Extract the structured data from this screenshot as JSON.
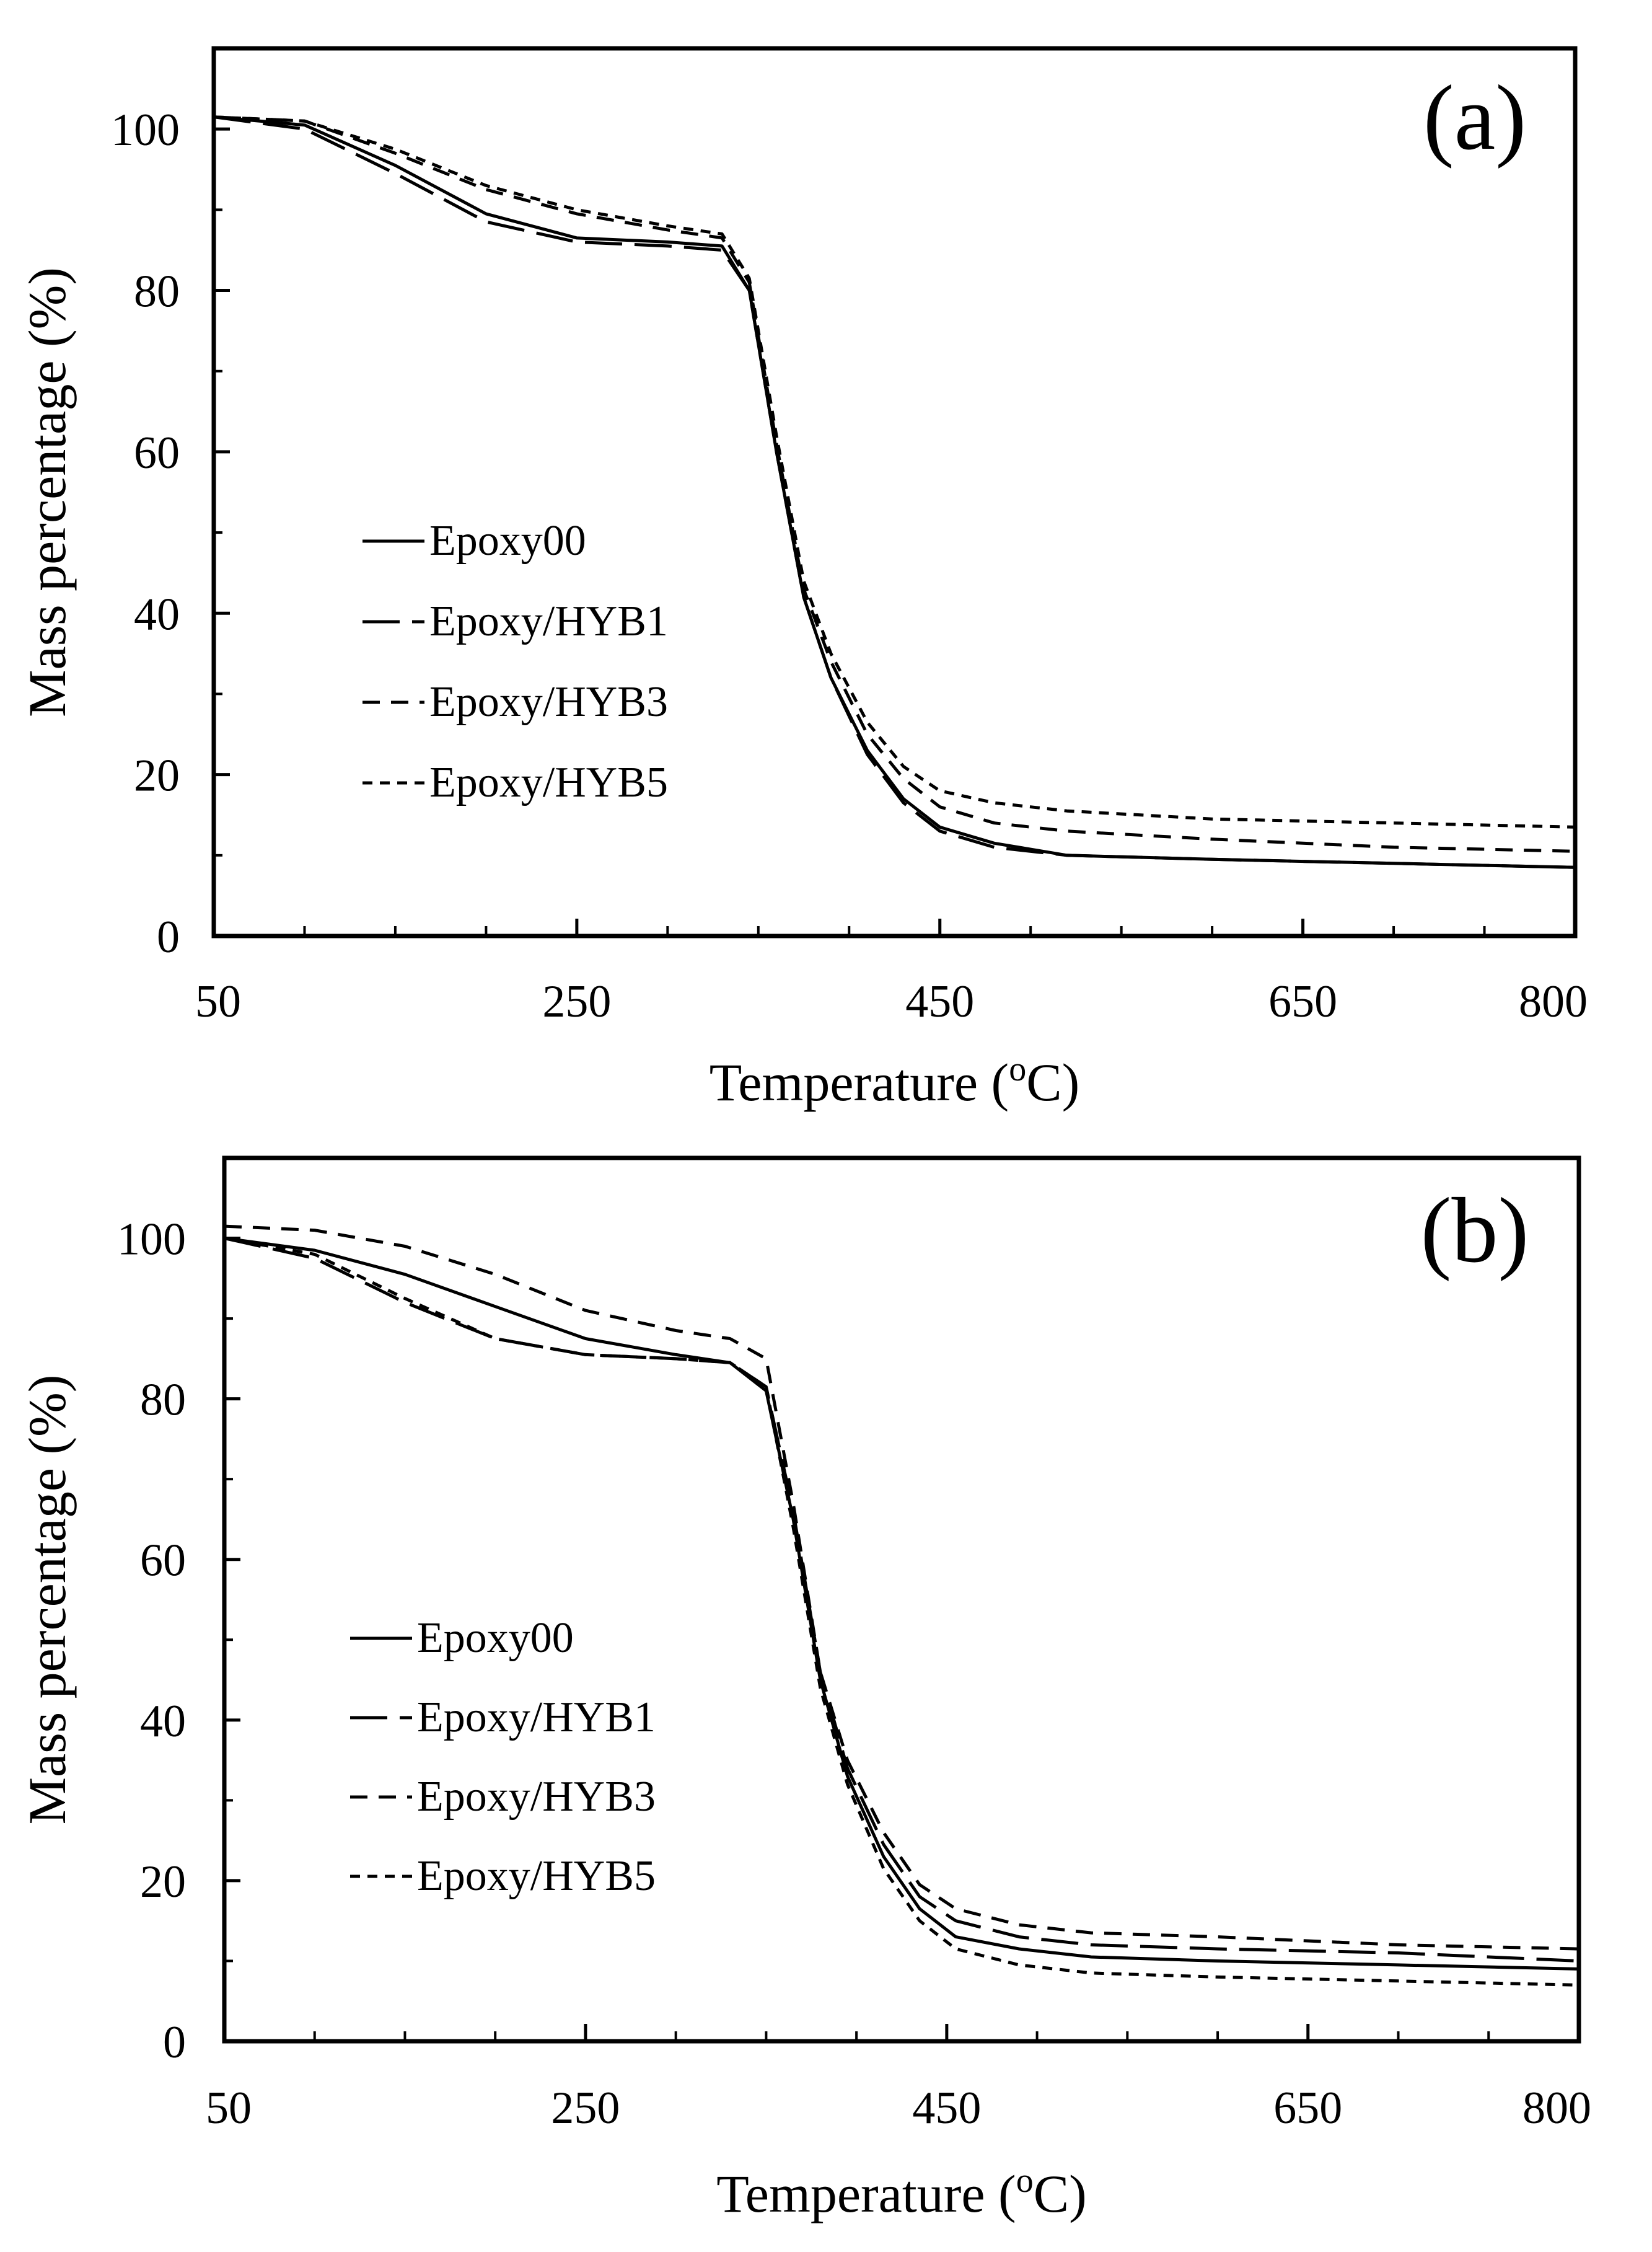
{
  "figure": {
    "description_none": null
  },
  "chart_data": [
    {
      "type": "line",
      "panel_label": "(a)",
      "title": "",
      "xlabel": "Temperature (",
      "xlabel_sup": "o",
      "xlabel_unit": "C)",
      "ylabel": "Mass percentage  (%)",
      "xlim": [
        50,
        800
      ],
      "ylim": [
        0,
        110
      ],
      "xticks": [
        50,
        250,
        450,
        650,
        800
      ],
      "xtick_labels": [
        "50",
        "250",
        "450",
        "650",
        "800"
      ],
      "yticks": [
        0,
        20,
        40,
        60,
        80,
        100
      ],
      "ytick_labels": [
        "0",
        "20",
        "40",
        "60",
        "80",
        "100"
      ],
      "grid": false,
      "legend_position": "center-left",
      "series": [
        {
          "name": "Epoxy00",
          "style": "solid",
          "x": [
            50,
            100,
            150,
            200,
            250,
            300,
            330,
            345,
            360,
            375,
            390,
            410,
            430,
            450,
            480,
            520,
            600,
            700,
            800
          ],
          "y": [
            101.5,
            100.5,
            95.5,
            89.5,
            86.5,
            86,
            85.5,
            80,
            60,
            42,
            32,
            23,
            17,
            13.5,
            11.5,
            10,
            9.5,
            9,
            8.5
          ]
        },
        {
          "name": "Epoxy/HYB1",
          "style": "long-dash",
          "x": [
            50,
            100,
            150,
            200,
            250,
            300,
            330,
            345,
            360,
            375,
            390,
            410,
            430,
            450,
            480,
            520,
            600,
            700,
            800
          ],
          "y": [
            101.5,
            100,
            94.5,
            88.5,
            86,
            85.5,
            85,
            80,
            60,
            42,
            32,
            22.5,
            16.5,
            13,
            11,
            10,
            9.5,
            9,
            8.5
          ]
        },
        {
          "name": "Epoxy/HYB3",
          "style": "dash",
          "x": [
            50,
            100,
            150,
            200,
            250,
            300,
            330,
            345,
            360,
            375,
            390,
            410,
            430,
            450,
            480,
            520,
            600,
            700,
            800
          ],
          "y": [
            101.5,
            101,
            97,
            92.5,
            89.5,
            87.5,
            86.5,
            81,
            61,
            43,
            34,
            25,
            19.5,
            16,
            14,
            13,
            12,
            11,
            10.5
          ]
        },
        {
          "name": "Epoxy/HYB5",
          "style": "short-dash",
          "x": [
            50,
            100,
            150,
            200,
            250,
            300,
            330,
            345,
            360,
            375,
            390,
            410,
            430,
            450,
            480,
            520,
            600,
            700,
            800
          ],
          "y": [
            101.5,
            101,
            97.5,
            93,
            90,
            88,
            87,
            81.5,
            62,
            44,
            35,
            26.5,
            21,
            18,
            16.5,
            15.5,
            14.5,
            14,
            13.5
          ]
        }
      ]
    },
    {
      "type": "line",
      "panel_label": "(b)",
      "title": "",
      "xlabel": "Temperature (",
      "xlabel_sup": "o",
      "xlabel_unit": "C)",
      "ylabel": "Mass percentage  (%)",
      "xlim": [
        50,
        800
      ],
      "ylim": [
        0,
        110
      ],
      "xticks": [
        50,
        250,
        450,
        650,
        800
      ],
      "xtick_labels": [
        "50",
        "250",
        "450",
        "650",
        "800"
      ],
      "yticks": [
        0,
        20,
        40,
        60,
        80,
        100
      ],
      "ytick_labels": [
        "0",
        "20",
        "40",
        "60",
        "80",
        "100"
      ],
      "grid": false,
      "legend_position": "center-left",
      "series": [
        {
          "name": "Epoxy00",
          "style": "solid",
          "x": [
            50,
            100,
            150,
            200,
            250,
            300,
            330,
            350,
            365,
            380,
            395,
            415,
            435,
            455,
            490,
            530,
            600,
            700,
            800
          ],
          "y": [
            100,
            98.5,
            95.5,
            91.5,
            87.5,
            85.5,
            84.5,
            81,
            65,
            45,
            33,
            23,
            16.5,
            13,
            11.5,
            10.5,
            10,
            9.5,
            9
          ]
        },
        {
          "name": "Epoxy/HYB1",
          "style": "long-dash",
          "x": [
            50,
            100,
            150,
            200,
            250,
            300,
            330,
            350,
            365,
            380,
            395,
            415,
            435,
            455,
            490,
            530,
            600,
            700,
            800
          ],
          "y": [
            100,
            97.5,
            92,
            87.5,
            85.5,
            85,
            84.5,
            81.5,
            66,
            46,
            34,
            24.5,
            18,
            15,
            13,
            12,
            11.5,
            11,
            10
          ]
        },
        {
          "name": "Epoxy/HYB3",
          "style": "dash",
          "x": [
            50,
            100,
            150,
            200,
            250,
            300,
            330,
            350,
            365,
            380,
            395,
            415,
            435,
            455,
            490,
            530,
            600,
            700,
            800
          ],
          "y": [
            101.5,
            101,
            99,
            95.5,
            91,
            88.5,
            87.5,
            85,
            67,
            46,
            35,
            26,
            19.5,
            16.5,
            14.5,
            13.5,
            13,
            12,
            11.5
          ]
        },
        {
          "name": "Epoxy/HYB5",
          "style": "short-dash",
          "x": [
            50,
            100,
            150,
            200,
            250,
            300,
            330,
            350,
            365,
            380,
            395,
            415,
            435,
            455,
            490,
            530,
            600,
            700,
            800
          ],
          "y": [
            100,
            98,
            92.5,
            87.5,
            85.5,
            85,
            84.5,
            81.5,
            64,
            44,
            32,
            21.5,
            15,
            11.5,
            9.5,
            8.5,
            8,
            7.5,
            7
          ]
        }
      ]
    }
  ]
}
